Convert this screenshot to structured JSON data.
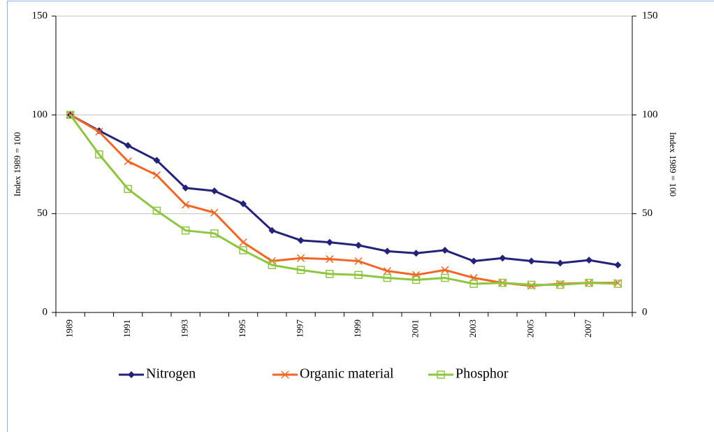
{
  "chart_data": {
    "type": "line",
    "ylabel": "Index 1989 = 100",
    "y2label": "Index 1989 = 100",
    "categories": [
      "1989",
      null,
      "1991",
      null,
      "1993",
      null,
      "1995",
      null,
      "1997",
      null,
      "1999",
      null,
      "2001",
      null,
      "2003",
      null,
      "2005",
      null,
      "2007",
      null
    ],
    "series": [
      {
        "name": "Nitrogen",
        "color": "#23237a",
        "marker": "diamond",
        "values": [
          100,
          92,
          84.5,
          77,
          63,
          61.5,
          55,
          41.5,
          36.5,
          35.5,
          34,
          31,
          30,
          31.5,
          26,
          27.5,
          26,
          25,
          26.5,
          24
        ]
      },
      {
        "name": "Organic material",
        "color": "#f26522",
        "marker": "x",
        "values": [
          100,
          91.5,
          76.5,
          69.5,
          54.5,
          50.5,
          35.5,
          26,
          27.5,
          27,
          26,
          21,
          19,
          21.5,
          17.5,
          15,
          13.5,
          14.5,
          15,
          15
        ]
      },
      {
        "name": "Phosphor",
        "color": "#8dc63f",
        "marker": "square",
        "values": [
          100,
          80,
          62.5,
          51.5,
          41.5,
          40,
          31.5,
          24,
          21.5,
          19.5,
          19,
          17.5,
          16.5,
          17.5,
          14.5,
          15,
          14,
          14,
          15,
          14.5
        ]
      }
    ],
    "ylim": [
      0,
      150
    ],
    "yticks": [
      0,
      50,
      100,
      150
    ],
    "y2lim": [
      0,
      150
    ],
    "y2ticks": [
      0,
      50,
      100,
      150
    ],
    "grid": true,
    "legend": "bottom"
  }
}
